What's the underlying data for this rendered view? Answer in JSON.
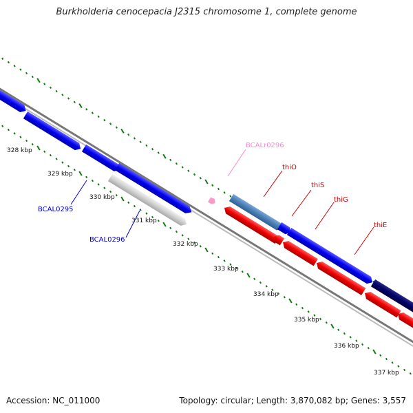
{
  "title": "Burkholderia cenocepacia J2315 chromosome 1, complete genome",
  "footer": {
    "accession": "Accession: NC_011000",
    "summary": "Topology: circular; Length: 3,870,082 bp; Genes: 3,557"
  },
  "colors": {
    "forward_gene": "#0000ee",
    "reverse_gene": "#ee0000",
    "pseudo_gene": "#c8c8c8",
    "rna_gene": "#ff99cc",
    "steel_gene": "#4a7fb5",
    "dark_gene": "#000066",
    "backbone": "#888888",
    "tick": "#117711"
  },
  "ruler": [
    {
      "label": "328 kbp"
    },
    {
      "label": "329 kbp"
    },
    {
      "label": "330 kbp"
    },
    {
      "label": "331 kbp"
    },
    {
      "label": "332 kbp"
    },
    {
      "label": "333 kbp"
    },
    {
      "label": "334 kbp"
    },
    {
      "label": "335 kbp"
    },
    {
      "label": "336 kbp"
    },
    {
      "label": "337 kbp"
    }
  ],
  "gene_labels": [
    {
      "name": "BCAL0295",
      "color": "#0000cc"
    },
    {
      "name": "BCAL0296",
      "color": "#0000cc"
    },
    {
      "name": "BCALr0296",
      "color": "#ff88cc"
    },
    {
      "name": "thiO",
      "color": "#cc0000"
    },
    {
      "name": "thiS",
      "color": "#cc0000"
    },
    {
      "name": "thiG",
      "color": "#cc0000"
    },
    {
      "name": "thiE",
      "color": "#cc0000"
    }
  ]
}
